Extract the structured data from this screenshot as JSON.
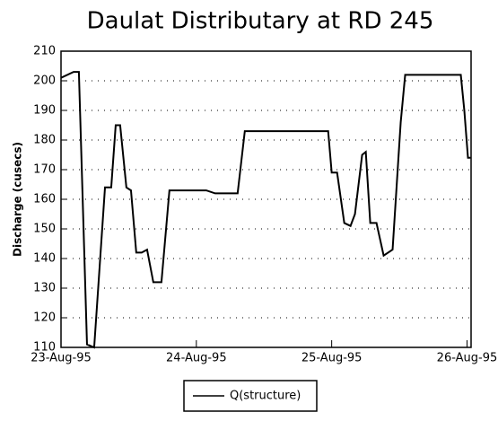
{
  "chart_data": {
    "type": "line",
    "title": "Daulat Distributary at RD 245",
    "y_label": "Discharge (cusecs)",
    "x": [
      0,
      0.093,
      0.132,
      0.192,
      0.245,
      0.325,
      0.371,
      0.404,
      0.437,
      0.483,
      0.517,
      0.556,
      0.596,
      0.636,
      0.682,
      0.742,
      0.801,
      0.874,
      1.073,
      1.139,
      1.305,
      1.358,
      1.934,
      1.974,
      2.0,
      2.04,
      2.093,
      2.139,
      2.172,
      2.225,
      2.252,
      2.285,
      2.331,
      2.384,
      2.45,
      2.51,
      2.543,
      2.954,
      2.98,
      3.007,
      3.026
    ],
    "series": [
      {
        "name": "Q(structure)",
        "color": "#000000",
        "values": [
          201,
          203,
          203,
          111,
          110,
          164,
          164,
          185,
          185,
          164,
          163,
          142,
          142,
          143,
          132,
          132,
          163,
          163,
          163,
          162,
          162,
          183,
          183,
          183,
          169,
          169,
          152,
          151,
          155,
          175,
          176,
          152,
          152,
          141,
          143,
          186,
          202,
          202,
          190,
          174,
          174
        ]
      }
    ],
    "xlim": [
      0,
      3.03
    ],
    "xticks": [
      {
        "value": 0,
        "label": "23-Aug-95"
      },
      {
        "value": 1,
        "label": "24-Aug-95"
      },
      {
        "value": 2,
        "label": "25-Aug-95"
      },
      {
        "value": 3,
        "label": "26-Aug-95"
      }
    ],
    "ylim": [
      110,
      210
    ],
    "yticks": [
      110,
      120,
      130,
      140,
      150,
      160,
      170,
      180,
      190,
      200,
      210
    ],
    "grid": true
  }
}
